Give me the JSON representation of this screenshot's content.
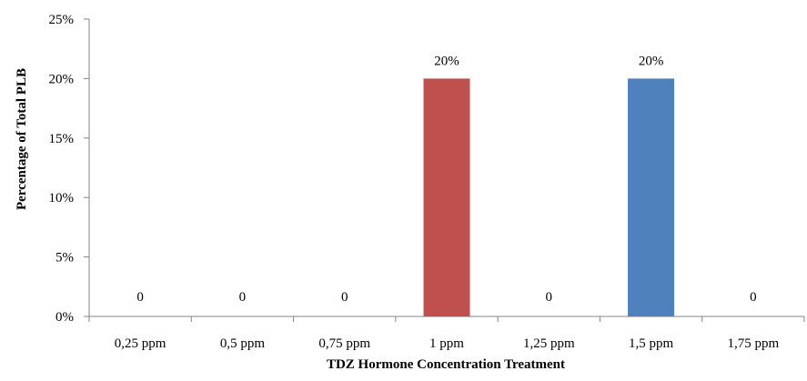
{
  "chart_data": {
    "type": "bar",
    "title": "",
    "xlabel": "TDZ Hormone Concentration Treatment",
    "ylabel": "Percentage of Total PLB",
    "categories": [
      "0,25 ppm",
      "0,5 ppm",
      "0,75 ppm",
      "1 ppm",
      "1,25 ppm",
      "1,5 ppm",
      "1,75 ppm"
    ],
    "values": [
      0,
      0,
      0,
      20,
      0,
      20,
      0
    ],
    "data_labels": [
      "0",
      "0",
      "0",
      "20%",
      "0",
      "20%",
      "0"
    ],
    "bar_colors": [
      "#c0504d",
      "#c0504d",
      "#c0504d",
      "#c0504d",
      "#4f81bd",
      "#4f81bd",
      "#4f81bd"
    ],
    "ylim": [
      0,
      25
    ],
    "yticks": [
      0,
      5,
      10,
      15,
      20,
      25
    ],
    "ytick_labels": [
      "0%",
      "5%",
      "10%",
      "15%",
      "20%",
      "25%"
    ],
    "grid": false,
    "legend": "none"
  }
}
